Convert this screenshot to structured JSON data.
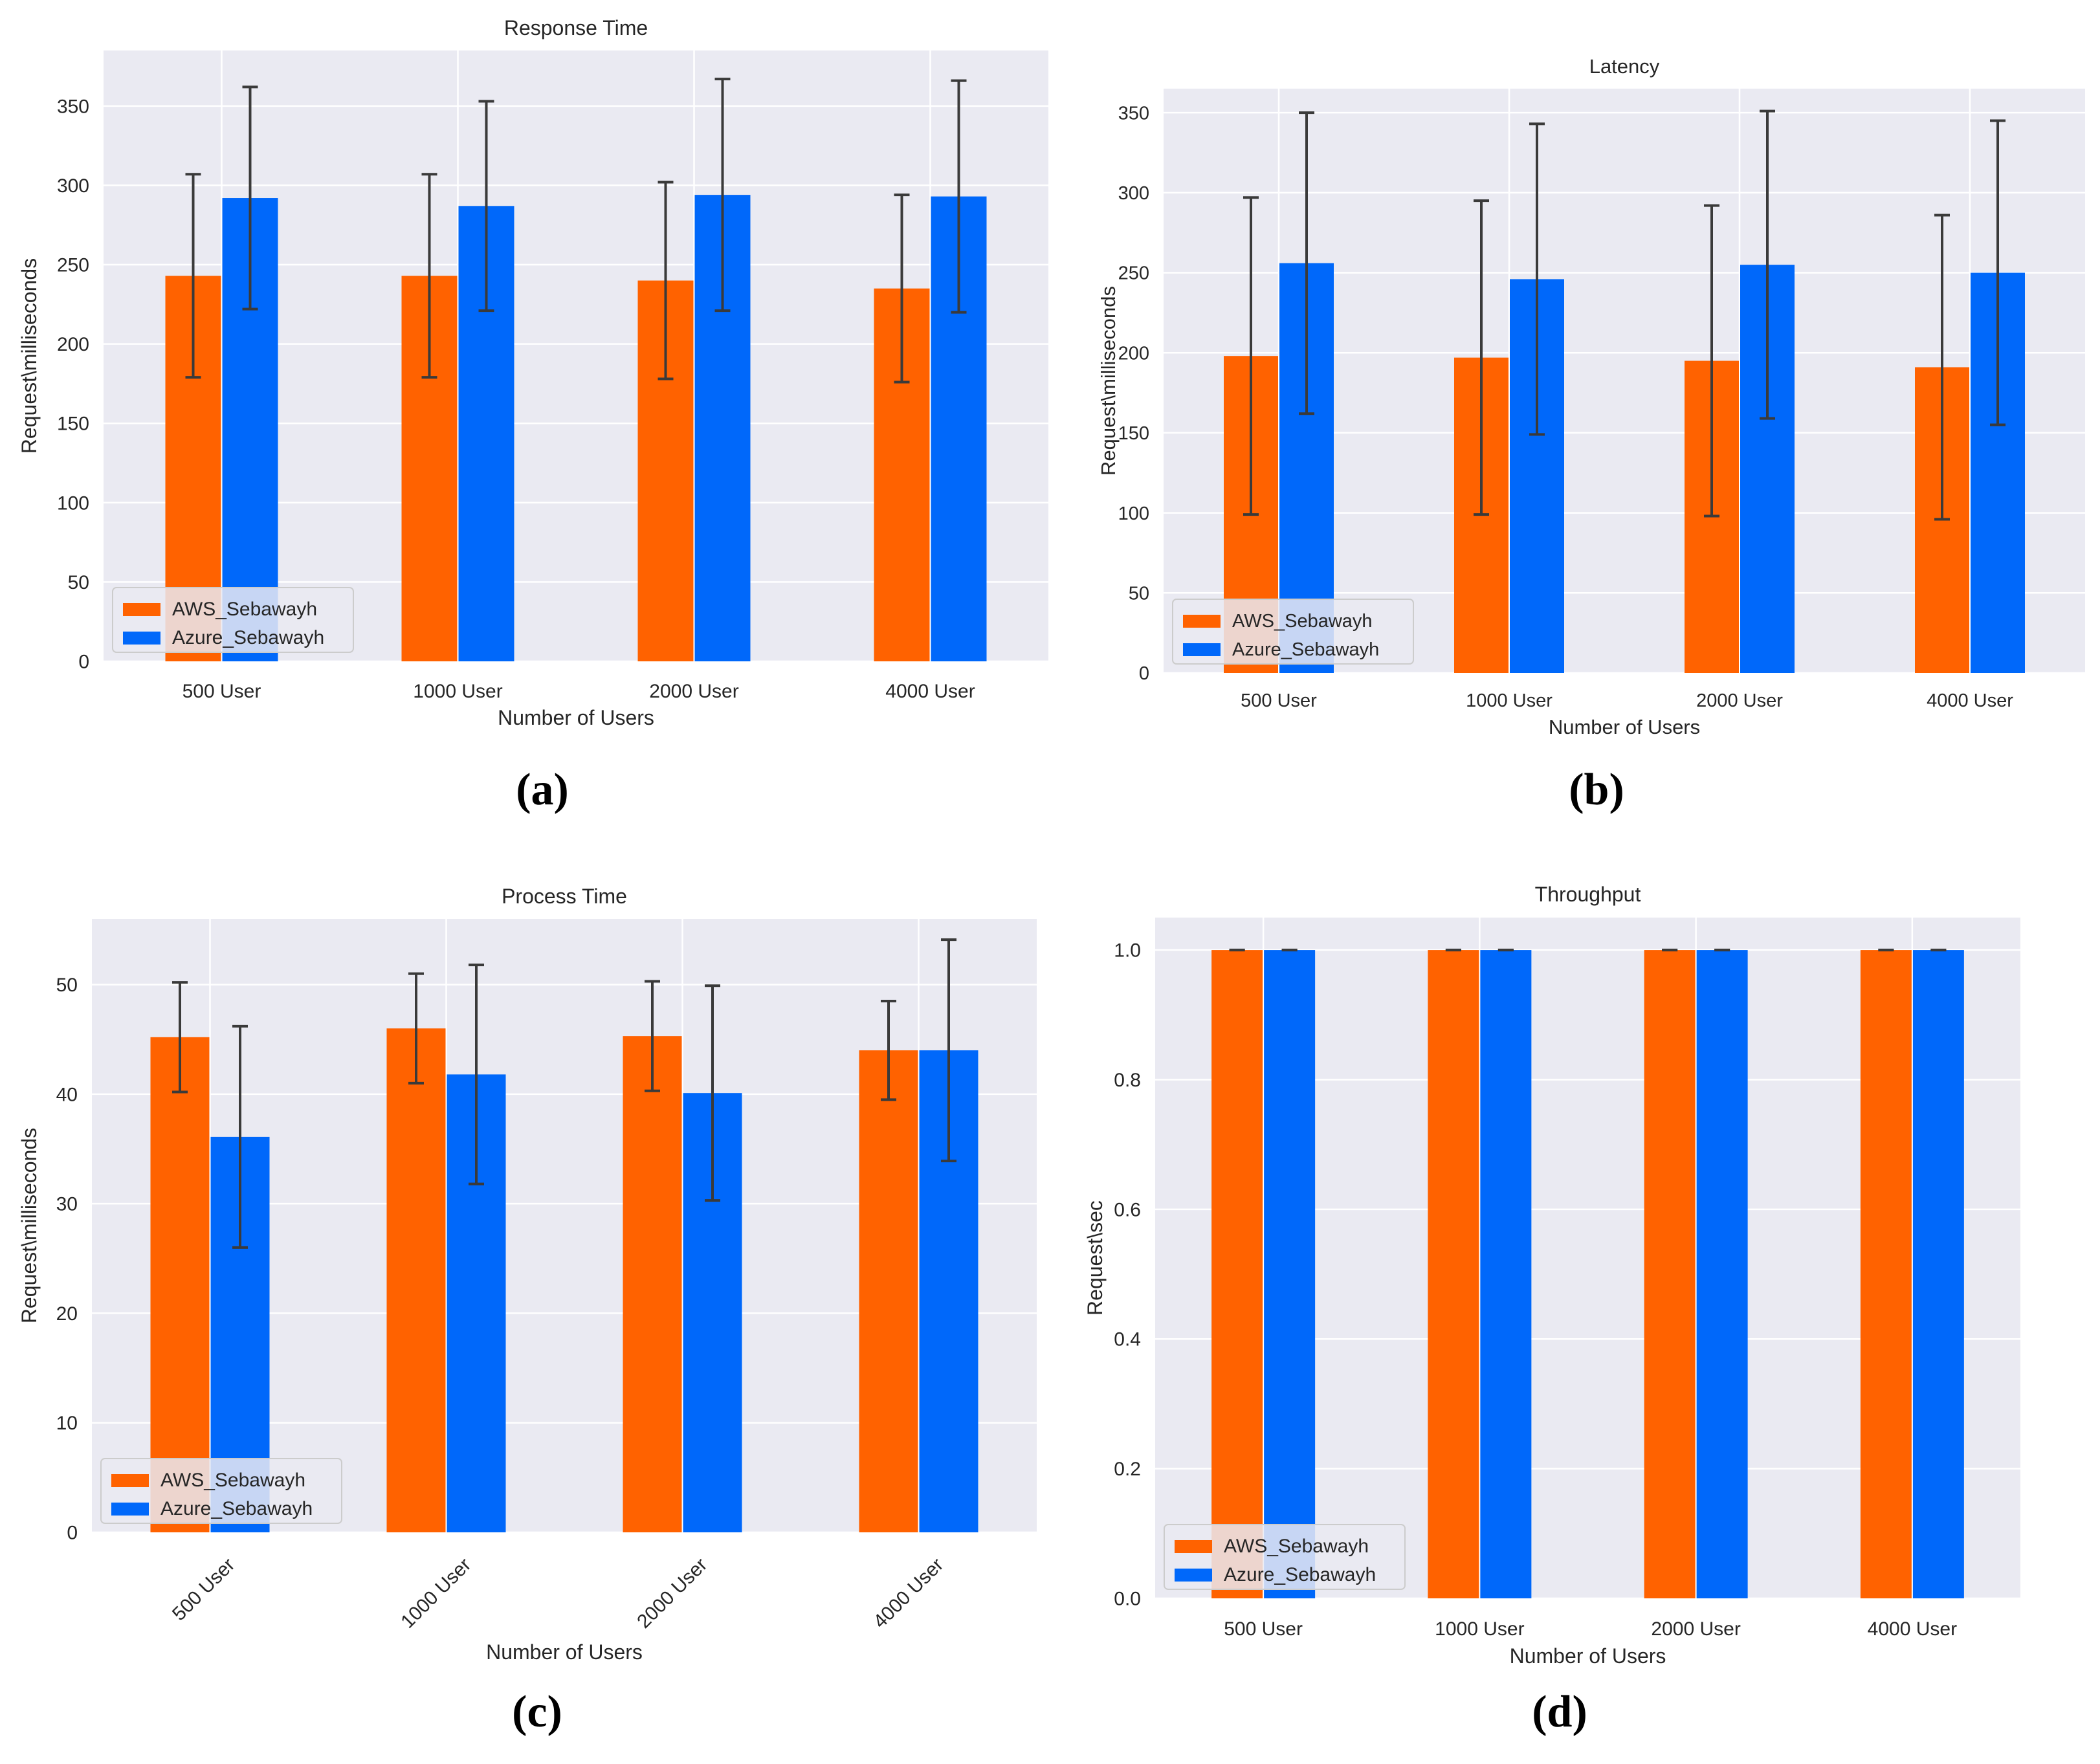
{
  "figure": {
    "colors": {
      "aws": "#ff6200",
      "azure": "#0068fa",
      "plot_bg": "#eaeaf2",
      "grid": "#ffffff",
      "error": "#3a3a3a"
    }
  },
  "chart_data": [
    {
      "id": "a",
      "type": "bar",
      "title": "Response Time",
      "subfigure_label": "(a)",
      "xlabel": "Number of Users",
      "ylabel": "Request\\milliseconds",
      "categories": [
        "500 User",
        "1000 User",
        "2000 User",
        "4000 User"
      ],
      "ylim": [
        0,
        385
      ],
      "yticks": [
        0,
        50,
        100,
        150,
        200,
        250,
        300,
        350
      ],
      "grid": true,
      "legend_position": "lower-left",
      "series": [
        {
          "name": "AWS_Sebawayh",
          "values": [
            243,
            243,
            240,
            235
          ],
          "errors": [
            64,
            64,
            62,
            59
          ]
        },
        {
          "name": "Azure_Sebawayh",
          "values": [
            292,
            287,
            294,
            293
          ],
          "errors": [
            70,
            66,
            73,
            73
          ]
        }
      ]
    },
    {
      "id": "b",
      "type": "bar",
      "title": "Latency",
      "subfigure_label": "(b)",
      "xlabel": "Number of Users",
      "ylabel": "Request\\milliseconds",
      "categories": [
        "500 User",
        "1000 User",
        "2000 User",
        "4000 User"
      ],
      "ylim": [
        0,
        365
      ],
      "yticks": [
        0,
        50,
        100,
        150,
        200,
        250,
        300,
        350
      ],
      "grid": true,
      "legend_position": "lower-left",
      "series": [
        {
          "name": "AWS_Sebawayh",
          "values": [
            198,
            197,
            195,
            191
          ],
          "errors": [
            99,
            98,
            97,
            95
          ]
        },
        {
          "name": "Azure_Sebawayh",
          "values": [
            256,
            246,
            255,
            250
          ],
          "errors": [
            94,
            97,
            96,
            95
          ]
        }
      ]
    },
    {
      "id": "c",
      "type": "bar",
      "title": "Process Time",
      "subfigure_label": "(c)",
      "xlabel": "Number of Users",
      "ylabel": "Request\\milliseconds",
      "categories": [
        "500 User",
        "1000 User",
        "2000 User",
        "4000 User"
      ],
      "xtick_rotation": 45,
      "ylim": [
        0,
        56
      ],
      "yticks": [
        0,
        10,
        20,
        30,
        40,
        50
      ],
      "grid": true,
      "legend_position": "lower-left",
      "series": [
        {
          "name": "AWS_Sebawayh",
          "values": [
            45.2,
            46.0,
            45.3,
            44.0
          ],
          "errors": [
            5.0,
            5.0,
            5.0,
            4.5
          ]
        },
        {
          "name": "Azure_Sebawayh",
          "values": [
            36.1,
            41.8,
            40.1,
            44.0
          ],
          "errors": [
            10.1,
            10.0,
            9.8,
            10.1
          ]
        }
      ]
    },
    {
      "id": "d",
      "type": "bar",
      "title": "Throughput",
      "subfigure_label": "(d)",
      "xlabel": "Number of Users",
      "ylabel": "Request\\sec",
      "categories": [
        "500 User",
        "1000 User",
        "2000 User",
        "4000 User"
      ],
      "ylim": [
        0,
        1.05
      ],
      "yticks": [
        "0.0",
        "0.2",
        "0.4",
        "0.6",
        "0.8",
        "1.0"
      ],
      "grid": true,
      "legend_position": "lower-left",
      "series": [
        {
          "name": "AWS_Sebawayh",
          "values": [
            1.0,
            1.0,
            1.0,
            1.0
          ],
          "errors": [
            0,
            0,
            0,
            0
          ]
        },
        {
          "name": "Azure_Sebawayh",
          "values": [
            1.0,
            1.0,
            1.0,
            1.0
          ],
          "errors": [
            0,
            0,
            0,
            0
          ]
        }
      ]
    }
  ]
}
